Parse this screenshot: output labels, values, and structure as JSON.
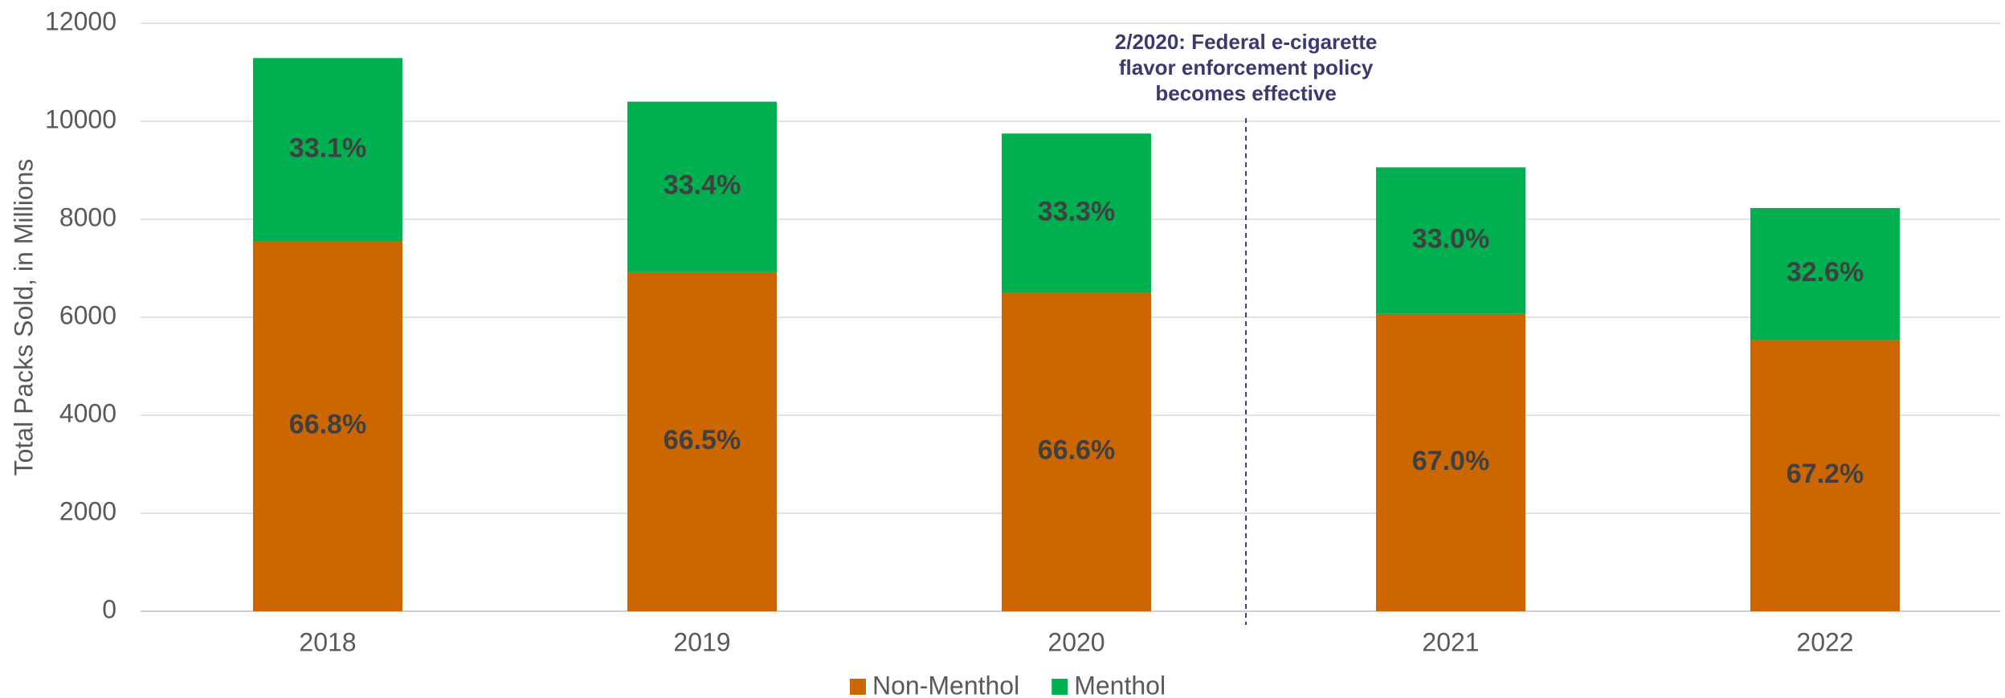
{
  "chart_data": {
    "type": "stacked_bar",
    "ylabel": "Total Packs Sold, in Millions",
    "categories": [
      "2018",
      "2019",
      "2020",
      "2021",
      "2022"
    ],
    "series": [
      {
        "name": "Non-Menthol",
        "color": "#cc6600",
        "values": [
          7550,
          6920,
          6500,
          6070,
          5540
        ],
        "share_labels": [
          "66.8%",
          "66.5%",
          "66.6%",
          "67.0%",
          "67.2%"
        ]
      },
      {
        "name": "Menthol",
        "color": "#00b050",
        "values": [
          3740,
          3480,
          3250,
          2990,
          2690
        ],
        "share_labels": [
          "33.1%",
          "33.4%",
          "33.3%",
          "33.0%",
          "32.6%"
        ]
      }
    ],
    "annotation": [
      "2/2020: Federal e-cigarette",
      "flavor enforcement policy",
      "becomes effective"
    ],
    "ylim": [
      0,
      12000
    ],
    "yticks": [
      0,
      2000,
      4000,
      6000,
      8000,
      10000,
      12000
    ],
    "grid": true,
    "legend": "bottom"
  }
}
